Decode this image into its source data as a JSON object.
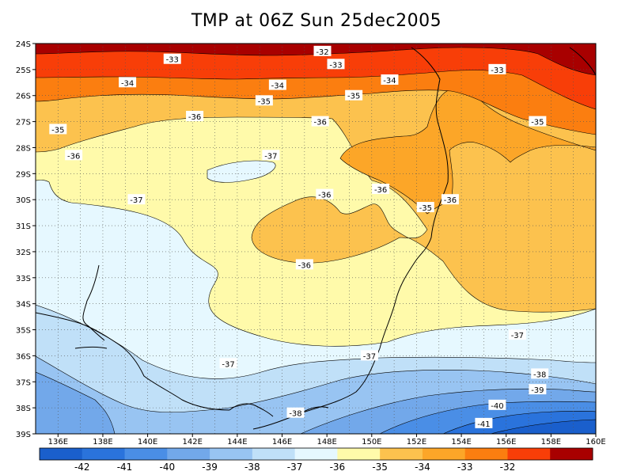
{
  "chart_data": {
    "type": "heatmap",
    "title": "TMP at 06Z Sun 25dec2005",
    "x_ticks": [
      "136E",
      "138E",
      "140E",
      "142E",
      "144E",
      "146E",
      "148E",
      "150E",
      "152E",
      "154E",
      "156E",
      "158E",
      "160E"
    ],
    "y_ticks": [
      "24S",
      "25S",
      "26S",
      "27S",
      "28S",
      "29S",
      "30S",
      "31S",
      "32S",
      "33S",
      "34S",
      "35S",
      "36S",
      "37S",
      "38S",
      "39S"
    ],
    "x_range": [
      135,
      160
    ],
    "y_range": [
      -39,
      -24
    ],
    "grid": true,
    "levels": [
      -42,
      -41,
      -40,
      -39,
      -38,
      -37,
      -36,
      -35,
      -34,
      -33,
      -32
    ],
    "level_labels": [
      "-42",
      "-41",
      "-40",
      "-39",
      "-38",
      "-37",
      "-36",
      "-35",
      "-34",
      "-33",
      "-32"
    ],
    "colors": [
      "#1a5fcc",
      "#2a73dc",
      "#4a8ee6",
      "#72a8ea",
      "#98c4f2",
      "#c0e0f8",
      "#e6f8ff",
      "#fffaaa",
      "#fcc24e",
      "#fca628",
      "#fb7e10",
      "#f83e08",
      "#a80000"
    ],
    "contour_labels": [
      {
        "text": "-32",
        "lon": 147.8,
        "lat": -24.3
      },
      {
        "text": "-33",
        "lon": 141.1,
        "lat": -24.6
      },
      {
        "text": "-33",
        "lon": 148.4,
        "lat": -24.8
      },
      {
        "text": "-33",
        "lon": 155.6,
        "lat": -25.0
      },
      {
        "text": "-34",
        "lon": 139.1,
        "lat": -25.5
      },
      {
        "text": "-34",
        "lon": 145.8,
        "lat": -25.6
      },
      {
        "text": "-34",
        "lon": 150.8,
        "lat": -25.4
      },
      {
        "text": "-35",
        "lon": 145.2,
        "lat": -26.2
      },
      {
        "text": "-35",
        "lon": 149.2,
        "lat": -26.0
      },
      {
        "text": "-35",
        "lon": 136.0,
        "lat": -27.3
      },
      {
        "text": "-35",
        "lon": 157.4,
        "lat": -27.0
      },
      {
        "text": "-36",
        "lon": 142.1,
        "lat": -26.8
      },
      {
        "text": "-36",
        "lon": 147.7,
        "lat": -27.0
      },
      {
        "text": "-36",
        "lon": 136.7,
        "lat": -28.3
      },
      {
        "text": "-36",
        "lon": 147.9,
        "lat": -29.8
      },
      {
        "text": "-36",
        "lon": 150.4,
        "lat": -29.6
      },
      {
        "text": "-36",
        "lon": 153.5,
        "lat": -30.0
      },
      {
        "text": "-36",
        "lon": 147.0,
        "lat": -32.5
      },
      {
        "text": "-37",
        "lon": 145.5,
        "lat": -28.3
      },
      {
        "text": "-37",
        "lon": 139.5,
        "lat": -30.0
      },
      {
        "text": "-37",
        "lon": 143.6,
        "lat": -36.3
      },
      {
        "text": "-37",
        "lon": 149.9,
        "lat": -36.0
      },
      {
        "text": "-37",
        "lon": 156.5,
        "lat": -35.2
      },
      {
        "text": "-35",
        "lon": 152.4,
        "lat": -30.3
      },
      {
        "text": "-38",
        "lon": 146.6,
        "lat": -38.2
      },
      {
        "text": "-38",
        "lon": 157.5,
        "lat": -36.7
      },
      {
        "text": "-39",
        "lon": 157.4,
        "lat": -37.3
      },
      {
        "text": "-40",
        "lon": 155.6,
        "lat": -37.9
      },
      {
        "text": "-41",
        "lon": 155.0,
        "lat": -38.6
      }
    ]
  }
}
